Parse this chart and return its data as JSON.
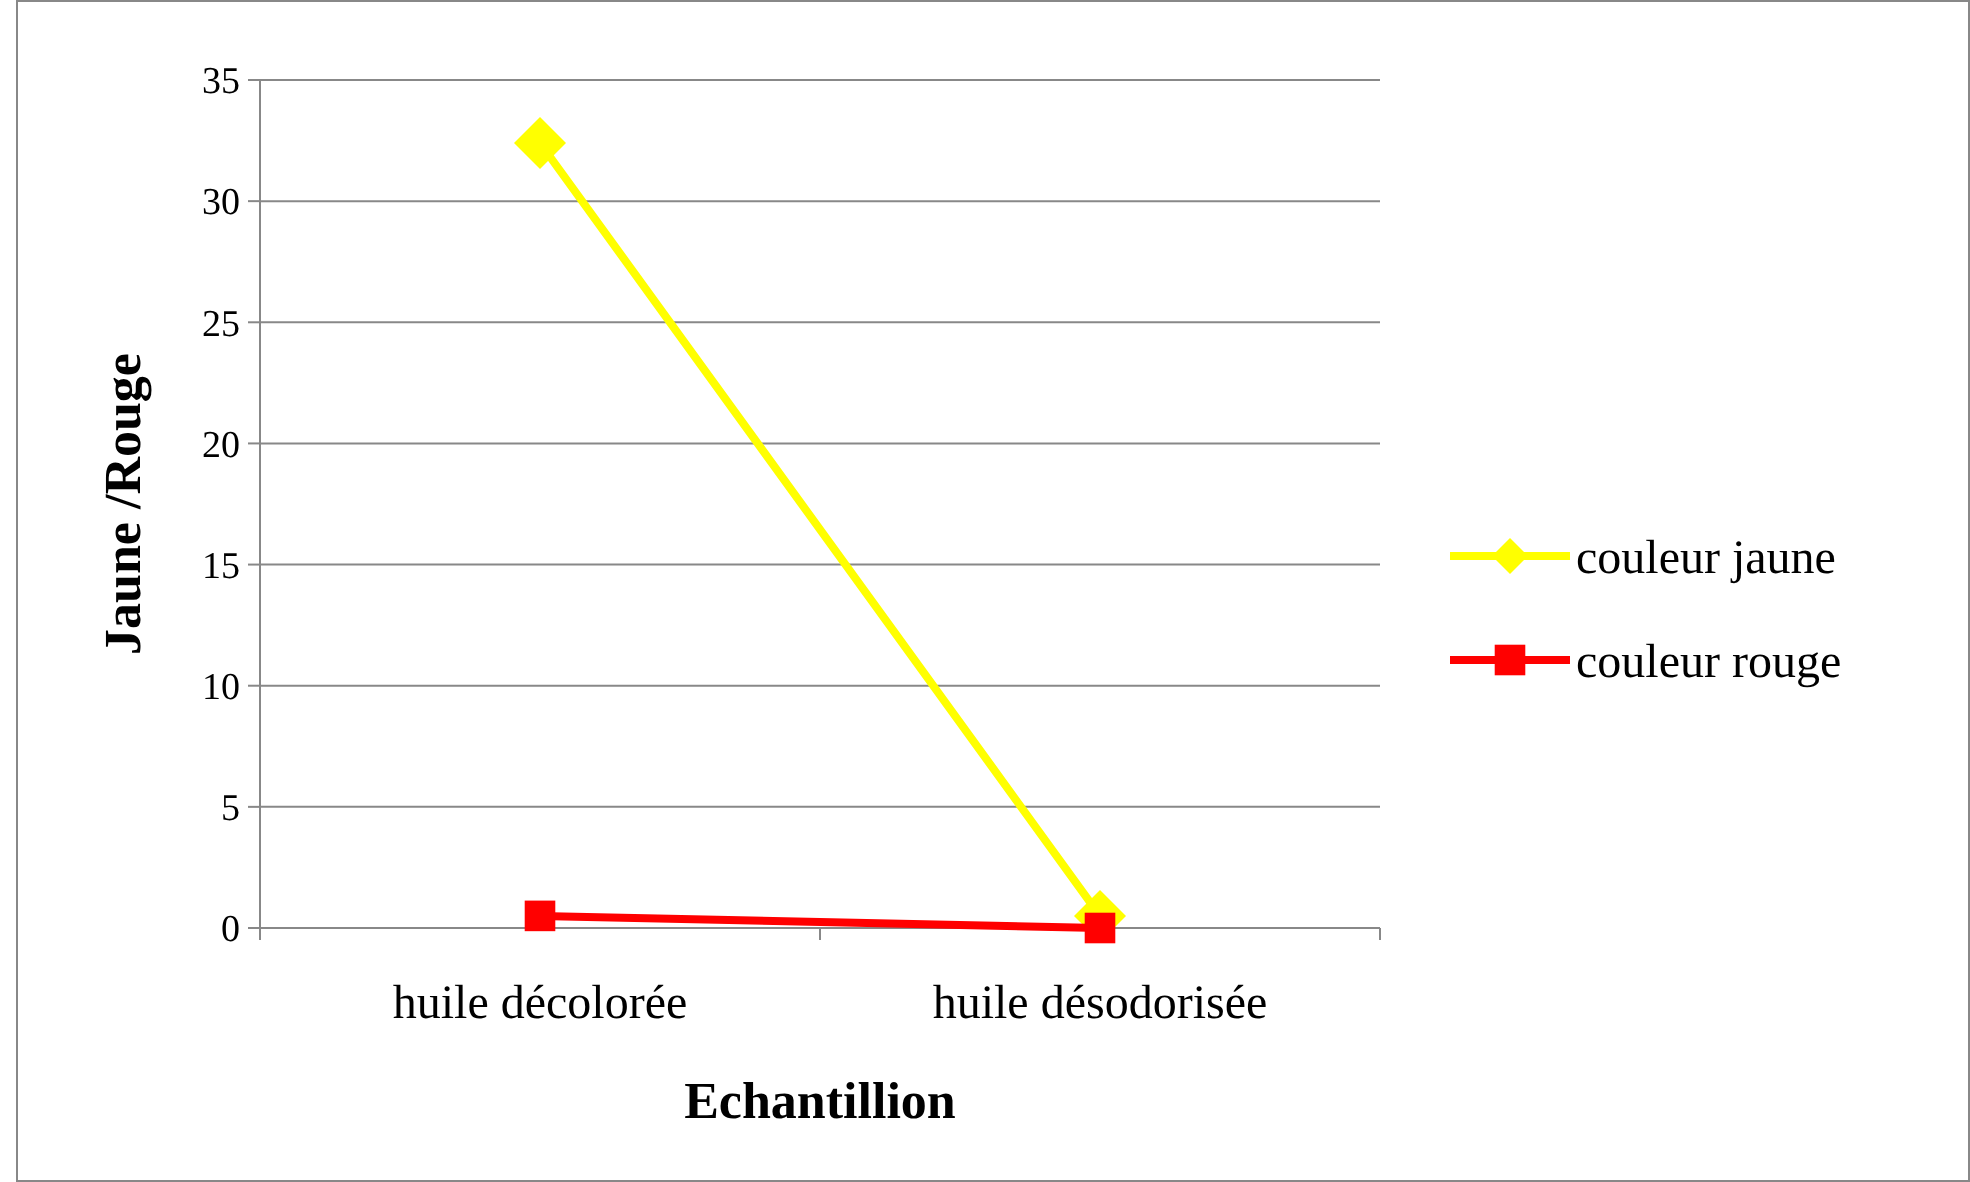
{
  "chart_data": {
    "type": "line",
    "xlabel": "Echantillion",
    "ylabel": "Jaune /Rouge",
    "categories": [
      "huile décolorée",
      "huile désodorisée"
    ],
    "series": [
      {
        "name": "couleur jaune",
        "color": "#ffff00",
        "values": [
          32.4,
          0.5
        ],
        "marker": "diamond"
      },
      {
        "name": "couleur rouge",
        "color": "#ff0000",
        "values": [
          0.5,
          0
        ],
        "marker": "square"
      }
    ],
    "ylim": [
      0,
      35
    ],
    "yticks": [
      0,
      5,
      10,
      15,
      20,
      25,
      30,
      35
    ],
    "grid": "y",
    "legend": "right"
  }
}
